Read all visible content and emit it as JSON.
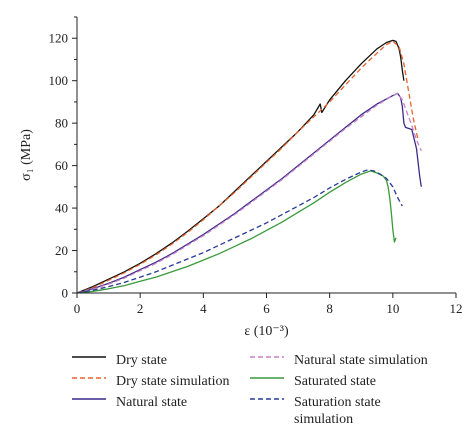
{
  "chart_data": {
    "type": "line",
    "title": "",
    "xlabel": "ε (10⁻³)",
    "ylabel": "σ₁ (MPa)",
    "xlim": [
      0,
      12
    ],
    "ylim": [
      0,
      130
    ],
    "xticks": [
      "0",
      "2",
      "4",
      "6",
      "8",
      "10",
      "12"
    ],
    "yticks": [
      "0",
      "20",
      "40",
      "60",
      "80",
      "100",
      "120"
    ],
    "grid": false,
    "legend_position": "bottom",
    "series": [
      {
        "name": "Dry state",
        "color": "#111111",
        "dash": "solid",
        "x": [
          0,
          0.5,
          1,
          1.5,
          2,
          2.5,
          3,
          3.5,
          4,
          4.5,
          5,
          5.5,
          6,
          6.5,
          7,
          7.5,
          7.7,
          7.75,
          8,
          8.5,
          9,
          9.5,
          9.8,
          10,
          10.1,
          10.2,
          10.25,
          10.3,
          10.35
        ],
        "y": [
          0,
          3,
          6.5,
          10,
          14,
          18.5,
          23.5,
          29,
          35,
          41,
          48,
          55,
          62,
          69,
          76,
          84,
          89,
          85,
          91,
          100,
          108,
          115,
          118,
          119,
          118.5,
          115,
          111,
          105,
          100
        ]
      },
      {
        "name": "Dry state simulation",
        "color": "#e8622a",
        "dash": "dashed",
        "x": [
          0,
          0.5,
          1,
          1.5,
          2,
          2.5,
          3,
          3.5,
          4,
          4.5,
          5,
          5.5,
          6,
          6.5,
          7,
          7.5,
          8,
          8.5,
          9,
          9.5,
          9.8,
          10,
          10.2,
          10.35,
          10.5,
          10.65,
          10.8
        ],
        "y": [
          0,
          2.5,
          6,
          9.5,
          13.5,
          18,
          23,
          28.5,
          34.5,
          41,
          47.5,
          54.5,
          61.5,
          68.5,
          76,
          83,
          90,
          98,
          106,
          113,
          117,
          118.5,
          116,
          108,
          95,
          82,
          72
        ]
      },
      {
        "name": "Natural state",
        "color": "#3d2a8a",
        "dash": "solid",
        "x": [
          0,
          0.5,
          1,
          1.5,
          2,
          2.5,
          3,
          3.5,
          4,
          4.5,
          5,
          5.5,
          6,
          6.5,
          7,
          7.5,
          8,
          8.5,
          9,
          9.5,
          10,
          10.15,
          10.25,
          10.3,
          10.35,
          10.4,
          10.6,
          10.75,
          10.85,
          10.9
        ],
        "y": [
          0,
          2,
          4.5,
          7.5,
          11,
          14.5,
          18.5,
          23,
          27.5,
          32.5,
          37.5,
          43,
          48.5,
          54,
          60,
          66,
          72,
          78,
          84,
          89,
          93,
          94,
          92,
          88,
          80,
          78,
          77,
          68,
          55,
          50
        ]
      },
      {
        "name": "Natural state simulation",
        "color": "#c880c8",
        "dash": "dashed",
        "x": [
          0,
          0.5,
          1,
          1.5,
          2,
          2.5,
          3,
          3.5,
          4,
          4.5,
          5,
          5.5,
          6,
          6.5,
          7,
          7.5,
          8,
          8.5,
          9,
          9.5,
          10,
          10.15,
          10.3,
          10.45,
          10.6,
          10.75,
          10.9
        ],
        "y": [
          0,
          1.8,
          4.2,
          7,
          10.5,
          14,
          18,
          22.5,
          27,
          32,
          37,
          42.5,
          48,
          53.5,
          59.5,
          65.5,
          71.5,
          77.5,
          83,
          88.5,
          93,
          94,
          91,
          85,
          79,
          72,
          67
        ]
      },
      {
        "name": "Saturated state",
        "color": "#3a9a3a",
        "dash": "solid",
        "x": [
          0,
          0.5,
          1,
          1.5,
          2,
          2.5,
          3,
          3.5,
          4,
          4.5,
          5,
          5.5,
          6,
          6.5,
          7,
          7.5,
          8,
          8.5,
          9,
          9.3,
          9.5,
          9.7,
          9.8,
          9.85,
          9.9,
          9.95,
          10,
          10.05,
          10.1
        ],
        "y": [
          0,
          0.8,
          2,
          3.5,
          5.5,
          7.5,
          10,
          12.5,
          15.5,
          18.5,
          22,
          25.5,
          29.5,
          33.5,
          38,
          42.5,
          47.5,
          52,
          56,
          57.5,
          56.5,
          55,
          53,
          50,
          45,
          38,
          30,
          24,
          26
        ]
      },
      {
        "name": "Saturation state simulation",
        "color": "#2a3a9a",
        "dash": "dashed",
        "x": [
          0,
          0.5,
          1,
          1.5,
          2,
          2.5,
          3,
          3.5,
          4,
          4.5,
          5,
          5.5,
          6,
          6.5,
          7,
          7.5,
          8,
          8.5,
          9,
          9.2,
          9.4,
          9.6,
          9.8,
          10,
          10.15,
          10.3
        ],
        "y": [
          0,
          1.3,
          3,
          5,
          7.5,
          10,
          13,
          16,
          19,
          22.5,
          26,
          29.5,
          33,
          37,
          41,
          45,
          49.5,
          53.5,
          57,
          58,
          57.5,
          56,
          54,
          50,
          45,
          41
        ]
      }
    ],
    "legend": [
      {
        "label": "Dry state",
        "color": "#111111",
        "dash": "solid"
      },
      {
        "label": "Natural state simulation",
        "color": "#c880c8",
        "dash": "dashed"
      },
      {
        "label": "Dry state simulation",
        "color": "#e8622a",
        "dash": "dashed"
      },
      {
        "label": "Saturated state",
        "color": "#3a9a3a",
        "dash": "solid"
      },
      {
        "label": "Natural state",
        "color": "#3d2a8a",
        "dash": "solid"
      },
      {
        "label": "Saturation state simulation",
        "color": "#2a3a9a",
        "dash": "dashed"
      }
    ]
  }
}
